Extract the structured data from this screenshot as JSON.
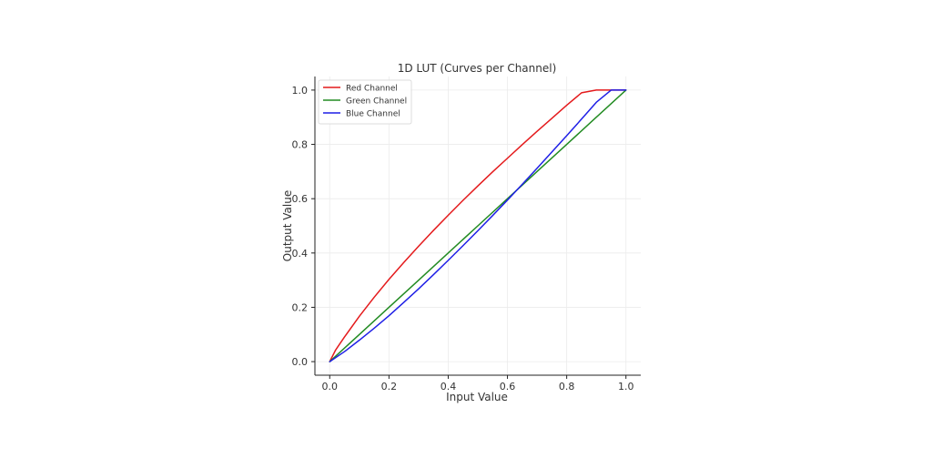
{
  "chart_data": {
    "type": "line",
    "title": "1D LUT (Curves per Channel)",
    "xlabel": "Input Value",
    "ylabel": "Output Value",
    "xlim": [
      -0.05,
      1.05
    ],
    "ylim": [
      -0.05,
      1.05
    ],
    "xticks": [
      0.0,
      0.2,
      0.4,
      0.6,
      0.8,
      1.0
    ],
    "yticks": [
      0.0,
      0.2,
      0.4,
      0.6,
      0.8,
      1.0
    ],
    "xtick_labels": [
      "0.0",
      "0.2",
      "0.4",
      "0.6",
      "0.8",
      "1.0"
    ],
    "ytick_labels": [
      "0.0",
      "0.2",
      "0.4",
      "0.6",
      "0.8",
      "1.0"
    ],
    "grid": true,
    "legend_position": "top-left",
    "series": [
      {
        "name": "Red Channel",
        "color": "#e41a1c",
        "x": [
          0,
          0.02,
          0.05,
          0.1,
          0.15,
          0.2,
          0.25,
          0.3,
          0.35,
          0.4,
          0.45,
          0.5,
          0.55,
          0.6,
          0.65,
          0.7,
          0.75,
          0.8,
          0.85,
          0.9,
          0.95,
          1.0
        ],
        "y": [
          0,
          0.043,
          0.091,
          0.167,
          0.237,
          0.303,
          0.365,
          0.425,
          0.483,
          0.539,
          0.594,
          0.647,
          0.699,
          0.749,
          0.799,
          0.848,
          0.896,
          0.944,
          0.99,
          1.0,
          1.0,
          1.0
        ]
      },
      {
        "name": "Green Channel",
        "color": "#228b22",
        "x": [
          0,
          0.1,
          0.2,
          0.3,
          0.4,
          0.5,
          0.6,
          0.7,
          0.8,
          0.9,
          1.0
        ],
        "y": [
          0,
          0.1,
          0.2,
          0.3,
          0.4,
          0.5,
          0.6,
          0.7,
          0.8,
          0.9,
          1.0
        ]
      },
      {
        "name": "Blue Channel",
        "color": "#1f1fe6",
        "x": [
          0,
          0.05,
          0.1,
          0.15,
          0.2,
          0.25,
          0.3,
          0.35,
          0.4,
          0.45,
          0.5,
          0.55,
          0.6,
          0.65,
          0.7,
          0.75,
          0.8,
          0.85,
          0.9,
          0.95,
          1.0
        ],
        "y": [
          0,
          0.037,
          0.079,
          0.123,
          0.169,
          0.218,
          0.268,
          0.32,
          0.373,
          0.427,
          0.482,
          0.538,
          0.595,
          0.653,
          0.712,
          0.772,
          0.832,
          0.893,
          0.955,
          1.0,
          1.0
        ]
      }
    ]
  }
}
